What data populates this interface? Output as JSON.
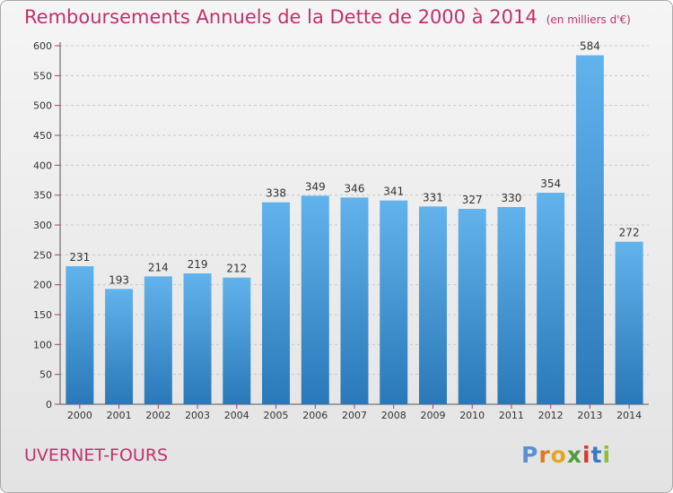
{
  "title": "Remboursements Annuels de la Dette de 2000 à 2014",
  "subtitle": "(en milliers d'€)",
  "commune": "UVERNET-FOURS",
  "logo": {
    "text": "Proxiti"
  },
  "colors": {
    "title": "#c0306e",
    "bar_top": "#62b3ec",
    "bar_bottom": "#2a78b8",
    "grid": "#c8c8c8",
    "tick_mark": "#c0306e"
  },
  "chart_data": {
    "type": "bar",
    "title": "Remboursements Annuels de la Dette de 2000 à 2014",
    "xlabel": "",
    "ylabel": "",
    "categories": [
      "2000",
      "2001",
      "2002",
      "2003",
      "2004",
      "2005",
      "2006",
      "2007",
      "2008",
      "2009",
      "2010",
      "2011",
      "2012",
      "2013",
      "2014"
    ],
    "values": [
      231,
      193,
      214,
      219,
      212,
      338,
      349,
      346,
      341,
      331,
      327,
      330,
      354,
      584,
      272
    ],
    "ylim": [
      0,
      600
    ],
    "yticks": [
      0,
      50,
      100,
      150,
      200,
      250,
      300,
      350,
      400,
      450,
      500,
      550,
      600
    ],
    "grid": true,
    "data_labels": true
  }
}
